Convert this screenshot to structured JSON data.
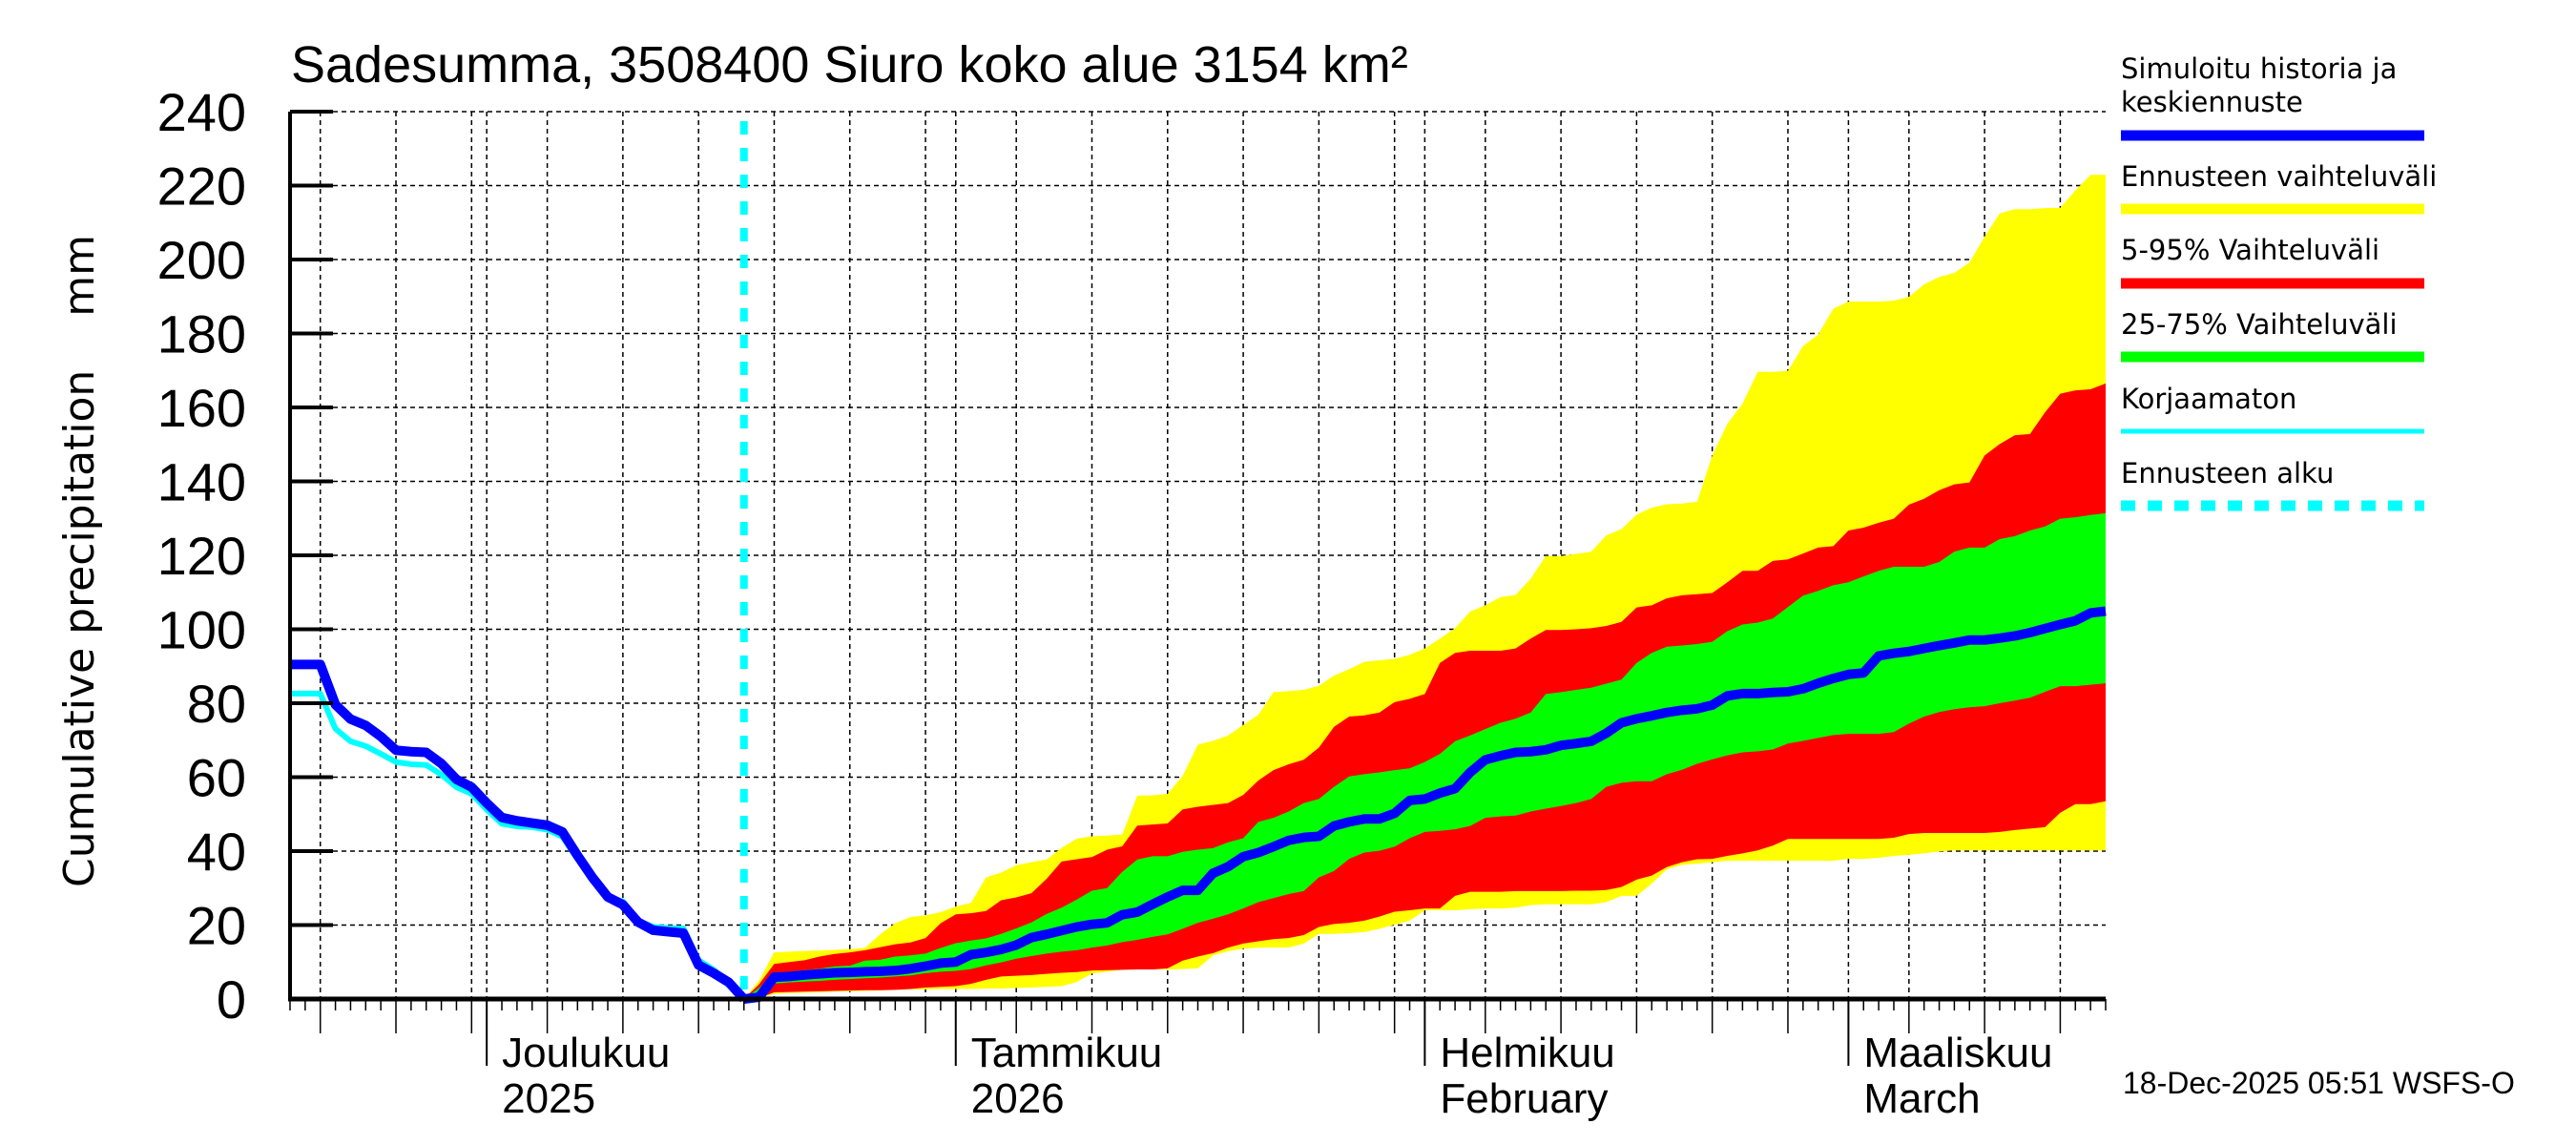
{
  "chart_data": {
    "type": "area",
    "title": "Sadesumma, 3508400 Siuro koko alue 3154 km²",
    "ylabel": "Cumulative precipitation    mm",
    "xlabel": "",
    "ylim": [
      0,
      240
    ],
    "yticks": [
      "0",
      "20",
      "40",
      "60",
      "80",
      "100",
      "120",
      "140",
      "160",
      "180",
      "200",
      "220",
      "240"
    ],
    "grid": true,
    "legend_placement": "right",
    "x_start_date": "2025-11-18",
    "x_days": 120,
    "forecast_start_index": 30,
    "month_labels": [
      {
        "date": "2025-12-01",
        "line1": "Joulukuu",
        "line2": "2025"
      },
      {
        "date": "2026-01-01",
        "line1": "Tammikuu",
        "line2": "2026"
      },
      {
        "date": "2026-02-01",
        "line1": "Helmikuu",
        "line2": "February"
      },
      {
        "date": "2026-03-01",
        "line1": "Maaliskuu",
        "line2": "March"
      }
    ],
    "history": {
      "simulated": [
        90.5,
        90.5,
        90.5,
        79.6,
        75.7,
        74,
        71,
        67.3,
        66.9,
        66.7,
        63.7,
        59.4,
        57.3,
        53,
        49.1,
        48.2,
        47.6,
        47,
        45.2,
        38.8,
        32.8,
        27.6,
        25.5,
        20.8,
        18.6,
        18.2,
        17.8,
        9.2,
        7,
        4.5,
        0
      ],
      "uncorrected": [
        82.6,
        82.6,
        82.6,
        73.1,
        69.7,
        68.4,
        66.3,
        64.1,
        63.5,
        63.3,
        60.7,
        57.3,
        55.5,
        51.2,
        47.4,
        46.7,
        46.5,
        45.8,
        43.9,
        37.9,
        32.4,
        27.6,
        26.4,
        21.2,
        19.5,
        19.2,
        19.1,
        10.5,
        7.9,
        4.5,
        0.5
      ]
    },
    "forecast": {
      "max": [
        0,
        5,
        12.6,
        12.8,
        13,
        13.1,
        13.3,
        13.5,
        13.8,
        17.5,
        20.5,
        22.2,
        22.6,
        23.5,
        25,
        26,
        32.9,
        34.2,
        36.2,
        37,
        37.7,
        40.9,
        43.4,
        44,
        44.2,
        44.5,
        55,
        55.1,
        55.5,
        60.4,
        68.8,
        69.8,
        71.3,
        74.1,
        76.9,
        83,
        83.3,
        83.6,
        84.7,
        87.5,
        89.2,
        91.2,
        91.6,
        92,
        93.1,
        94.8,
        97.5,
        100.3,
        104.8,
        106.5,
        108.7,
        109.3,
        113.7,
        119.8,
        119.8,
        120.4,
        121,
        125.4,
        127.1,
        131,
        132.9,
        133.8,
        134,
        134.5,
        147,
        155.6,
        161,
        169.6,
        169.6,
        169.9,
        176.6,
        179.7,
        186.7,
        188.6,
        188.6,
        188.6,
        188.9,
        189.9,
        193.3,
        195.3,
        196.4,
        199.2,
        206.2,
        212.5,
        213.6,
        213.6,
        213.9,
        214,
        218.7,
        222.9,
        222.9
      ],
      "p95": [
        0,
        4,
        9.5,
        10,
        10.5,
        11.5,
        12.2,
        12.6,
        13.2,
        14,
        14.8,
        15.3,
        16.5,
        20.5,
        22.9,
        23.2,
        23.8,
        26.7,
        27.5,
        28.6,
        32.5,
        37.2,
        37.8,
        38.4,
        40.4,
        41.3,
        46.9,
        47.2,
        47.5,
        51.3,
        52,
        52.5,
        53,
        55.2,
        59.1,
        61.9,
        63.5,
        64.7,
        68,
        73.6,
        76.4,
        76.7,
        77.5,
        80.3,
        81.2,
        82.5,
        90.9,
        93.6,
        94.2,
        94.2,
        94.2,
        94.8,
        97.5,
        99.8,
        99.8,
        100,
        100.3,
        100.9,
        102,
        105.9,
        106.5,
        108.4,
        109.2,
        109.5,
        109.8,
        112.7,
        115.8,
        115.8,
        118.5,
        118.9,
        120.5,
        122.1,
        122.5,
        126.7,
        127.5,
        128.8,
        129.9,
        133.7,
        135.3,
        137.6,
        139.2,
        139.7,
        147,
        150.1,
        152.5,
        152.8,
        158.7,
        163.7,
        164.6,
        164.9,
        166.5
      ],
      "p75": [
        0,
        3,
        7,
        7.4,
        7.8,
        8.2,
        8.8,
        9,
        10.4,
        10.6,
        11.5,
        11.8,
        12.3,
        13.8,
        15.1,
        15.8,
        16.4,
        17.6,
        19.1,
        20.7,
        23,
        24.7,
        26.9,
        29.3,
        30,
        34.4,
        37.7,
        38.6,
        38.6,
        39.8,
        40.4,
        40.8,
        42.4,
        43.5,
        47.9,
        49,
        50.7,
        53,
        54.1,
        57.4,
        60.2,
        60.8,
        61.3,
        61.9,
        62.4,
        64.1,
        66.3,
        69.7,
        71.3,
        73,
        74.7,
        75.8,
        77.5,
        82.5,
        83,
        83.6,
        84.2,
        85.3,
        86.4,
        90.9,
        93.6,
        95.3,
        95.6,
        96,
        96.6,
        99.5,
        101.3,
        101.8,
        102.9,
        106,
        109.1,
        110.4,
        111.9,
        112.7,
        114.3,
        115.8,
        116.9,
        116.9,
        116.9,
        118.2,
        121,
        122.1,
        122.1,
        124.4,
        125.2,
        126.7,
        127.8,
        129.9,
        130.3,
        130.9,
        131.4
      ],
      "median": [
        0,
        0.5,
        5.9,
        6.1,
        6.5,
        6.8,
        7.1,
        7.2,
        7.4,
        7.5,
        7.7,
        8.2,
        8.9,
        9.7,
        10,
        12,
        12.6,
        13.4,
        14.6,
        16.6,
        17.5,
        18.5,
        19.5,
        20.2,
        20.6,
        22.8,
        23.5,
        25.6,
        27.6,
        29.4,
        29.4,
        34,
        35.8,
        38.5,
        39.6,
        41.2,
        42.9,
        43.7,
        44,
        46.8,
        47.9,
        48.7,
        48.7,
        50.2,
        53.7,
        54.1,
        55.7,
        56.9,
        61.3,
        64.7,
        65.8,
        66.7,
        66.9,
        67.4,
        68.6,
        69.1,
        69.7,
        71.9,
        74.7,
        75.8,
        76.6,
        77.5,
        78.1,
        78.5,
        79.5,
        82,
        82.6,
        82.6,
        82.9,
        83.1,
        83.9,
        85.4,
        86.7,
        87.8,
        88.2,
        92.8,
        93.5,
        94,
        94.8,
        95.6,
        96.3,
        97.1,
        97.1,
        97.6,
        98.2,
        99.1,
        100.2,
        101.3,
        102.3,
        104.4,
        104.9
      ],
      "p25": [
        0,
        0.5,
        4.2,
        4.5,
        4.7,
        4.9,
        5.2,
        5.4,
        5.6,
        5.8,
        6.1,
        6.4,
        7,
        7.4,
        7.6,
        8.1,
        9.1,
        9.9,
        10.9,
        11.6,
        12.3,
        12.8,
        13.2,
        13.9,
        14.5,
        15.4,
        16,
        16.8,
        17.5,
        19,
        20.6,
        21.7,
        22.9,
        24.5,
        26.2,
        27.3,
        28.4,
        29.2,
        32.9,
        34.6,
        37.9,
        39.6,
        40.1,
        41.2,
        43.5,
        45.2,
        45.5,
        45.9,
        46.8,
        49,
        49.4,
        49.6,
        50.7,
        51.5,
        52.2,
        53,
        54.1,
        57.4,
        58.5,
        58.9,
        58.9,
        60.8,
        62,
        63.6,
        64.8,
        65.9,
        66.7,
        67,
        67.5,
        69.1,
        69.8,
        70.6,
        71.4,
        71.7,
        71.7,
        71.7,
        72.2,
        74.5,
        76.4,
        77.6,
        78.4,
        78.9,
        79.2,
        80,
        80.7,
        81.5,
        83.1,
        84.6,
        84.6,
        85,
        85.4
      ],
      "p5": [
        0,
        0.3,
        1.8,
        1.9,
        2,
        2.1,
        2.2,
        2.3,
        2.4,
        2.4,
        2.5,
        2.7,
        3.1,
        3.3,
        3.5,
        4.1,
        5.2,
        6.1,
        6.3,
        6.5,
        6.8,
        7.1,
        7.3,
        7.7,
        7.8,
        7.9,
        8,
        8,
        8.3,
        10.4,
        11.5,
        12.4,
        13.9,
        15,
        15.6,
        16.2,
        16.5,
        17.3,
        19.5,
        20.3,
        20.6,
        21.2,
        22.3,
        23.6,
        24,
        24.5,
        24.5,
        27.9,
        29,
        29,
        29,
        29.2,
        29.2,
        29.2,
        29.2,
        29.3,
        29.3,
        29.5,
        30.3,
        32.3,
        33.4,
        35.7,
        37,
        37.8,
        37.9,
        38.7,
        39.4,
        40.2,
        41.5,
        43.3,
        43.3,
        43.3,
        43.3,
        43.3,
        43.3,
        43.3,
        43.6,
        44.6,
        44.9,
        44.9,
        44.9,
        44.9,
        44.9,
        45.2,
        45.7,
        46.1,
        46.5,
        50.4,
        52.7,
        52.7,
        53.5
      ],
      "min": [
        0,
        0.2,
        1.4,
        1.6,
        1.7,
        1.8,
        2,
        2.1,
        2.2,
        2.3,
        2.5,
        2.6,
        2.6,
        2.7,
        2.7,
        2.7,
        2.8,
        2.8,
        3,
        3.1,
        3.3,
        3.5,
        4.6,
        6.9,
        7.4,
        7.9,
        8,
        8,
        8,
        8.1,
        8.3,
        11.8,
        12.9,
        13.6,
        13.9,
        13.9,
        13.9,
        15,
        17.6,
        17.6,
        17.8,
        18.1,
        19,
        20.1,
        21.2,
        24,
        24,
        24,
        24.3,
        24.5,
        24.5,
        24.7,
        25.4,
        25.6,
        25.6,
        25.6,
        25.6,
        26.2,
        27.9,
        27.9,
        31.2,
        35.1,
        36.3,
        36.6,
        37,
        37.4,
        37.4,
        37.4,
        37.4,
        37.4,
        37.4,
        37.4,
        37.4,
        37.9,
        37.9,
        38.2,
        38.7,
        39,
        39.4,
        39.9,
        40.2,
        40.2,
        40.2,
        40.2,
        40.2,
        40.2,
        40.2,
        40.2,
        40.2,
        40.2,
        40.2
      ]
    },
    "legend": [
      {
        "label": "Simuloitu historia ja keskiennuste",
        "line1": "Simuloitu historia ja",
        "line2": "keskiennuste",
        "color": "#0000ff",
        "style": "solid"
      },
      {
        "label": "Ennusteen vaihteluväli",
        "color": "#ffff00",
        "style": "solid"
      },
      {
        "label": "5-95% Vaihteluväli",
        "color": "#ff0000",
        "style": "solid"
      },
      {
        "label": "25-75% Vaihteluväli",
        "color": "#00ff00",
        "style": "solid"
      },
      {
        "label": "Korjaamaton",
        "color": "#00ffff",
        "style": "solid"
      },
      {
        "label": "Ennusteen alku",
        "color": "#00ffff",
        "style": "dashed"
      }
    ],
    "colors": {
      "median": "#0000ff",
      "range": "#ffff00",
      "p5_95": "#ff0000",
      "p25_75": "#00ff00",
      "uncorrected": "#00ffff",
      "forecast_start": "#00ffff"
    }
  },
  "footer": {
    "timestamp": "18-Dec-2025 05:51 WSFS-O"
  }
}
